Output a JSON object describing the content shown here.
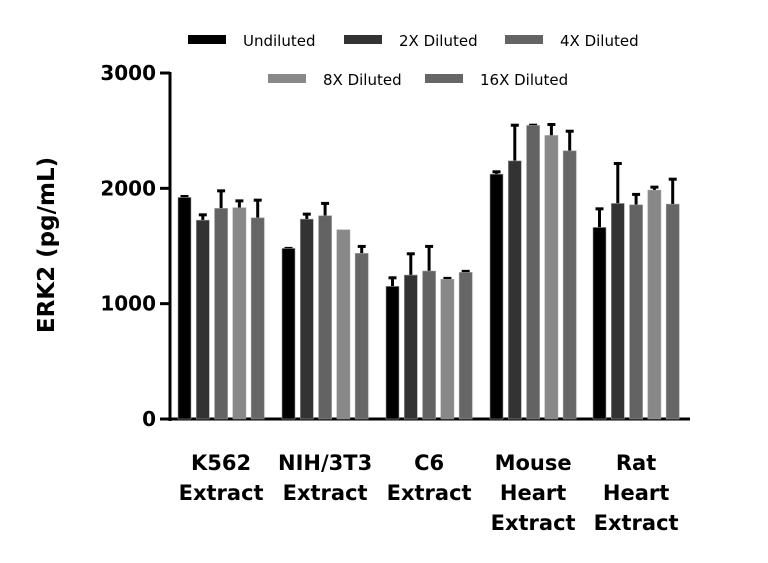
{
  "chart_data": {
    "type": "bar",
    "title": "",
    "xlabel": "",
    "ylabel": "ERK2 (pg/mL)",
    "ylim": [
      0,
      3000
    ],
    "yticks": [
      "0",
      "1000",
      "2000",
      "3000"
    ],
    "grid": false,
    "legend_placement": "top",
    "categories": [
      "K562\nExtract",
      "NIH/3T3\nExtract",
      "C6\nExtract",
      "Mouse\nHeart\nExtract",
      "Rat\nHeart\nExtract"
    ],
    "series": [
      {
        "name": "Undiluted",
        "color": "#000000",
        "values": [
          1921,
          1479,
          1150,
          2123,
          1661
        ],
        "error_upper": [
          1938,
          1488,
          1233,
          2152,
          1831
        ]
      },
      {
        "name": "2X Diluted",
        "color": "#333333",
        "values": [
          1724,
          1733,
          1248,
          2238,
          1869
        ],
        "error_upper": [
          1779,
          1785,
          1441,
          2556,
          2224
        ]
      },
      {
        "name": "4X Diluted",
        "color": "#636363",
        "values": [
          1826,
          1762,
          1283,
          2545,
          1857
        ],
        "error_upper": [
          1987,
          1878,
          1505,
          2556,
          1956
        ]
      },
      {
        "name": "8X Diluted",
        "color": "#888888",
        "values": [
          1831,
          1640,
          1211,
          2458,
          1984
        ],
        "error_upper": [
          1900,
          1640,
          1228,
          2562,
          2019
        ]
      },
      {
        "name": "16X Diluted",
        "color": "#666666",
        "values": [
          1744,
          1436,
          1271,
          2325,
          1863
        ],
        "error_upper": [
          1906,
          1505,
          1289,
          2504,
          2088
        ]
      }
    ]
  }
}
